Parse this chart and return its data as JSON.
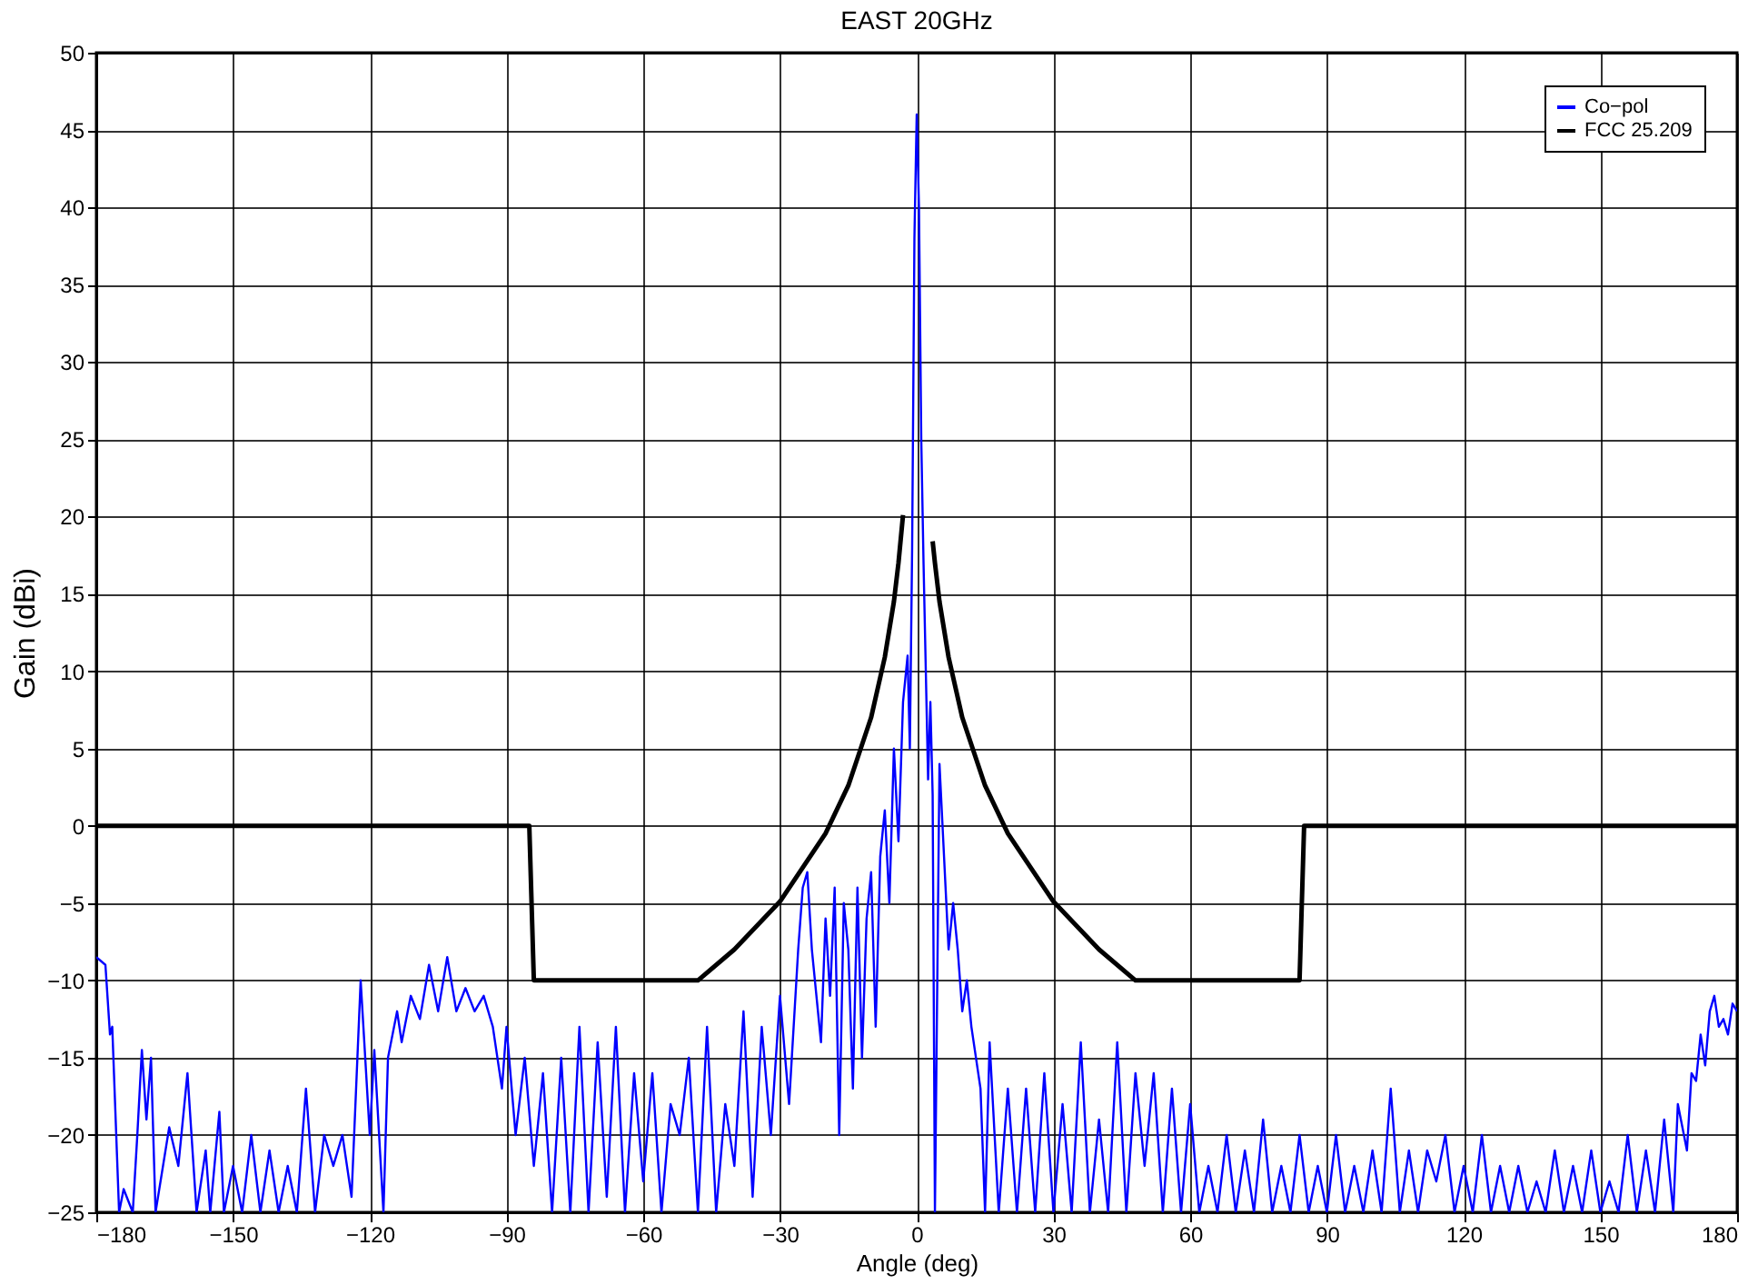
{
  "chart_data": {
    "type": "line",
    "title": "EAST 20GHz",
    "xlabel": "Angle (deg)",
    "ylabel": "Gain (dBi)",
    "xlim": [
      -180,
      180
    ],
    "xticks": [
      -180,
      -150,
      -120,
      -90,
      -60,
      -30,
      0,
      30,
      60,
      90,
      120,
      150,
      180
    ],
    "ylim": [
      -25,
      50
    ],
    "yticks": [
      -25,
      -20,
      -15,
      -10,
      -5,
      0,
      5,
      10,
      15,
      20,
      25,
      30,
      35,
      40,
      45,
      50
    ],
    "grid": true,
    "legend": "top right",
    "line_style": "solid",
    "marker": "none",
    "series": [
      {
        "name": "Co−pol",
        "color": "#0000ff",
        "x": [
          -180,
          -178,
          -177,
          -176.5,
          -175,
          -174,
          -172,
          -171,
          -170,
          -169,
          -168,
          -167,
          -164,
          -162,
          -160,
          -158,
          -156,
          -155,
          -153,
          -152,
          -150,
          -148,
          -146,
          -144,
          -142,
          -140,
          -138,
          -136,
          -134,
          -132,
          -130,
          -128,
          -126,
          -124,
          -122,
          -120,
          -119,
          -117,
          -116,
          -114,
          -113,
          -111,
          -109,
          -107,
          -105,
          -103,
          -101,
          -99,
          -97,
          -95,
          -93,
          -91,
          -90,
          -88,
          -86,
          -84,
          -82,
          -80,
          -78,
          -76,
          -74,
          -72,
          -70,
          -68,
          -66,
          -64,
          -62,
          -60,
          -58,
          -56,
          -54,
          -52,
          -50,
          -48,
          -46,
          -44,
          -42,
          -40,
          -38,
          -36,
          -34,
          -32,
          -30,
          -28,
          -26,
          -25,
          -24,
          -23,
          -21,
          -20,
          -19,
          -18,
          -17,
          -16,
          -15,
          -14,
          -13,
          -12,
          -11,
          -10,
          -9,
          -8,
          -7,
          -6,
          -5,
          -4,
          -3,
          -2,
          -1.5,
          -1,
          -0.5,
          0,
          0.5,
          1,
          1.5,
          2,
          2.5,
          3,
          3.5,
          4,
          5,
          6,
          7,
          8,
          9,
          10,
          11,
          12,
          13,
          14,
          15,
          16,
          18,
          20,
          22,
          24,
          26,
          28,
          30,
          32,
          34,
          36,
          38,
          40,
          42,
          44,
          46,
          48,
          50,
          52,
          54,
          56,
          58,
          60,
          62,
          64,
          66,
          68,
          70,
          72,
          74,
          76,
          78,
          80,
          82,
          84,
          86,
          88,
          90,
          92,
          94,
          96,
          98,
          100,
          102,
          104,
          106,
          108,
          110,
          112,
          114,
          116,
          118,
          120,
          122,
          124,
          126,
          128,
          130,
          132,
          134,
          136,
          138,
          140,
          142,
          144,
          146,
          148,
          150,
          152,
          154,
          156,
          158,
          160,
          162,
          164,
          166,
          167,
          169,
          170,
          171,
          172,
          173,
          174,
          175,
          176,
          177,
          178,
          179,
          180
        ],
        "values": [
          -8.5,
          -9,
          -13.5,
          -13,
          -25,
          -23.5,
          -25,
          -20,
          -14.5,
          -19,
          -15,
          -25,
          -19.5,
          -22,
          -16,
          -25,
          -21,
          -25,
          -18.5,
          -25,
          -22,
          -25,
          -20,
          -25,
          -21,
          -25,
          -22,
          -25,
          -17,
          -25,
          -20,
          -22,
          -20,
          -24,
          -10,
          -20,
          -14.5,
          -25,
          -15,
          -12,
          -14,
          -11,
          -12.5,
          -9,
          -12,
          -8.5,
          -12,
          -10.5,
          -12,
          -11,
          -13,
          -17,
          -13,
          -20,
          -15,
          -22,
          -16,
          -25,
          -15,
          -25,
          -13,
          -25,
          -14,
          -24,
          -13,
          -25,
          -16,
          -23,
          -16,
          -25,
          -18,
          -20,
          -15,
          -25,
          -13,
          -25,
          -18,
          -22,
          -12,
          -24,
          -13,
          -20,
          -11,
          -18,
          -8,
          -4,
          -3,
          -8,
          -14,
          -6,
          -11,
          -4,
          -20,
          -5,
          -8,
          -17,
          -4,
          -15,
          -6,
          -3,
          -13,
          -2,
          1,
          -5,
          5,
          -1,
          8,
          11,
          5,
          18,
          38,
          46,
          40,
          25,
          17,
          10,
          3,
          8,
          2,
          -25,
          4,
          -2,
          -8,
          -5,
          -8,
          -12,
          -10,
          -13,
          -15,
          -17,
          -25,
          -14,
          -25,
          -17,
          -25,
          -17,
          -25,
          -16,
          -25,
          -18,
          -25,
          -14,
          -25,
          -19,
          -25,
          -14,
          -25,
          -16,
          -22,
          -16,
          -25,
          -17,
          -25,
          -18,
          -25,
          -22,
          -25,
          -20,
          -25,
          -21,
          -25,
          -19,
          -25,
          -22,
          -25,
          -20,
          -25,
          -22,
          -25,
          -20,
          -25,
          -22,
          -25,
          -21,
          -25,
          -17,
          -25,
          -21,
          -25,
          -21,
          -23,
          -20,
          -25,
          -22,
          -25,
          -20,
          -25,
          -22,
          -25,
          -22,
          -25,
          -23,
          -25,
          -21,
          -25,
          -22,
          -25,
          -21,
          -25,
          -23,
          -25,
          -20,
          -25,
          -21,
          -25,
          -19,
          -25,
          -18,
          -21,
          -16,
          -16.5,
          -13.5,
          -15.5,
          -12,
          -11,
          -13,
          -12.5,
          -13.5,
          -11.5,
          -12
        ]
      },
      {
        "name": "FCC 25.209",
        "color": "#000000",
        "x": [
          -180,
          -85,
          -84,
          -48,
          -40,
          -30,
          -20,
          -15,
          -10,
          -7,
          -5,
          -4,
          -3,
          0,
          3.5,
          4,
          5,
          7,
          10,
          15,
          20,
          30,
          40,
          48,
          84,
          85,
          180
        ],
        "values": [
          0,
          0,
          -10,
          -10,
          -8,
          -4.9,
          -0.5,
          2.6,
          7,
          10.9,
          14.5,
          17,
          20.1,
          null,
          18.4,
          17,
          14.5,
          10.9,
          7,
          2.6,
          -0.5,
          -4.9,
          -8,
          -10,
          -10,
          0,
          0
        ]
      }
    ]
  }
}
